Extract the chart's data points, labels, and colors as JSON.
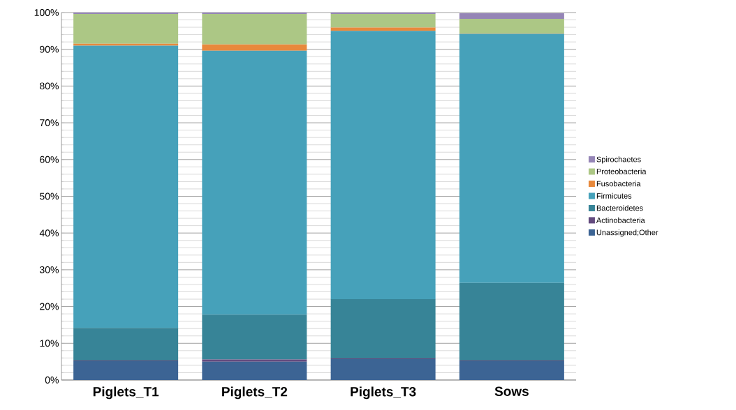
{
  "chart_data": {
    "type": "bar",
    "stacked": true,
    "categories": [
      "Piglets_T1",
      "Piglets_T2",
      "Piglets_T3",
      "Sows"
    ],
    "series": [
      {
        "name": "Unassigned;Other",
        "color": "#3c6494",
        "values": [
          5.1,
          5.0,
          5.7,
          5.1
        ]
      },
      {
        "name": "Actinobacteria",
        "color": "#634a7e",
        "values": [
          0.2,
          0.6,
          0.2,
          0.2
        ]
      },
      {
        "name": "Bacteroidetes",
        "color": "#378497",
        "values": [
          8.9,
          12.2,
          16.1,
          21.1
        ]
      },
      {
        "name": "Firmicutes",
        "color": "#46a1ba",
        "values": [
          76.8,
          71.8,
          73.0,
          67.8
        ]
      },
      {
        "name": "Fusobacteria",
        "color": "#e8893c",
        "values": [
          0.5,
          1.7,
          0.9,
          0.1
        ]
      },
      {
        "name": "Proteobacteria",
        "color": "#acc785",
        "values": [
          8.1,
          8.3,
          3.7,
          4.0
        ]
      },
      {
        "name": "Spirochaetes",
        "color": "#9585b6",
        "values": [
          0.4,
          0.4,
          0.4,
          1.5
        ]
      }
    ],
    "ylim": [
      0,
      100
    ],
    "yticks": [
      {
        "value": 0,
        "label": "0%"
      },
      {
        "value": 10,
        "label": "10%"
      },
      {
        "value": 20,
        "label": "20%"
      },
      {
        "value": 30,
        "label": "30%"
      },
      {
        "value": 40,
        "label": "40%"
      },
      {
        "value": 50,
        "label": "50%"
      },
      {
        "value": 60,
        "label": "60%"
      },
      {
        "value": 70,
        "label": "70%"
      },
      {
        "value": 80,
        "label": "80%"
      },
      {
        "value": 90,
        "label": "90%"
      },
      {
        "value": 100,
        "label": "100%"
      }
    ],
    "grid": "y",
    "legend": "right"
  }
}
